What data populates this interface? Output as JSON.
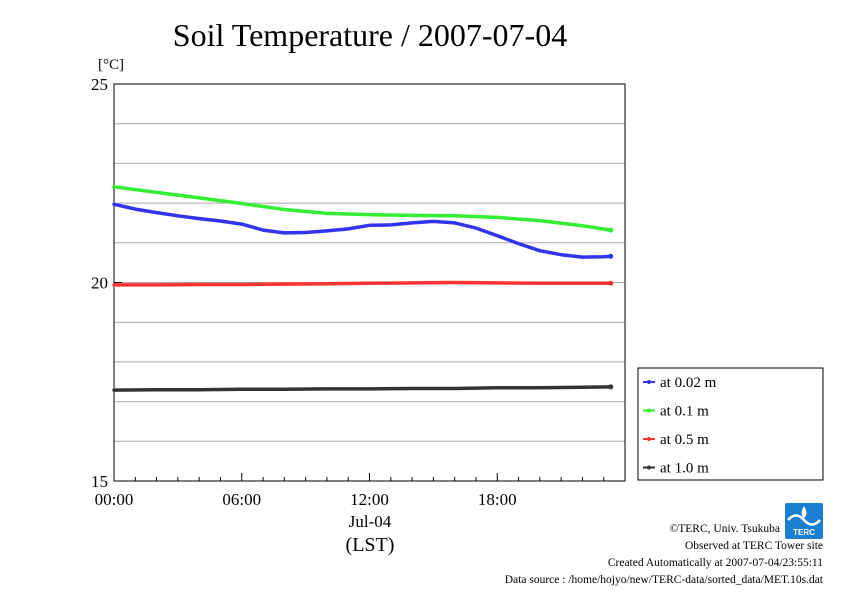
{
  "chart_data": {
    "type": "line",
    "title": "Soil Temperature / 2007-07-04",
    "ylabel": "[°C]",
    "xlabel": "(LST)",
    "date_label": "Jul-04",
    "x_ticks": [
      "00:00",
      "06:00",
      "12:00",
      "18:00"
    ],
    "y_ticks": [
      "15",
      "20",
      "25"
    ],
    "xlim": [
      0,
      23.33
    ],
    "ylim": [
      15,
      25
    ],
    "y_grid_step": 1,
    "grid": true,
    "legend_position": "right",
    "x_unit": "hours (LST)",
    "series": [
      {
        "name": "at 1.0 m",
        "color": "#333333",
        "x": [
          0,
          2,
          4,
          6,
          8,
          10,
          12,
          14,
          16,
          17,
          18,
          20,
          22,
          23.33
        ],
        "y": [
          17.29,
          17.3,
          17.3,
          17.31,
          17.31,
          17.32,
          17.32,
          17.33,
          17.33,
          17.34,
          17.35,
          17.35,
          17.36,
          17.37
        ]
      },
      {
        "name": "at 0.5 m",
        "color": "#ff3333",
        "x": [
          0,
          2,
          4,
          6,
          8,
          10,
          12,
          14,
          16,
          18,
          20,
          22,
          23.33
        ],
        "y": [
          19.94,
          19.94,
          19.95,
          19.95,
          19.96,
          19.97,
          19.98,
          19.99,
          20.0,
          19.99,
          19.98,
          19.98,
          19.98
        ]
      },
      {
        "name": "at 0.1 m",
        "color": "#33ee33",
        "x": [
          0,
          2,
          4,
          6,
          8,
          10,
          12,
          14,
          16,
          18,
          20,
          22,
          23.33
        ],
        "y": [
          22.41,
          22.27,
          22.13,
          21.99,
          21.84,
          21.74,
          21.71,
          21.69,
          21.68,
          21.64,
          21.56,
          21.43,
          21.32
        ]
      },
      {
        "name": "at 0.02 m",
        "color": "#3333ee",
        "x": [
          0,
          1,
          2,
          3,
          4,
          5,
          6,
          7,
          8,
          9,
          10,
          11,
          12,
          13,
          14,
          15,
          16,
          17,
          18,
          19,
          20,
          21,
          22,
          23,
          23.33
        ],
        "y": [
          21.97,
          21.85,
          21.76,
          21.68,
          21.61,
          21.55,
          21.47,
          21.32,
          21.25,
          21.26,
          21.3,
          21.35,
          21.44,
          21.45,
          21.5,
          21.54,
          21.5,
          21.37,
          21.18,
          20.98,
          20.8,
          20.7,
          20.64,
          20.65,
          20.66
        ]
      }
    ]
  },
  "credits": {
    "copyright": "©TERC, Univ. Tsukuba",
    "observed": "Observed at TERC Tower site",
    "created": "Created Automatically at 2007-07-04/23:55:11",
    "source": "Data source : /home/hojyo/new/TERC-data/sorted_data/MET.10s.dat"
  },
  "logo": {
    "text": "TERC",
    "color": "#1a7fd0"
  }
}
